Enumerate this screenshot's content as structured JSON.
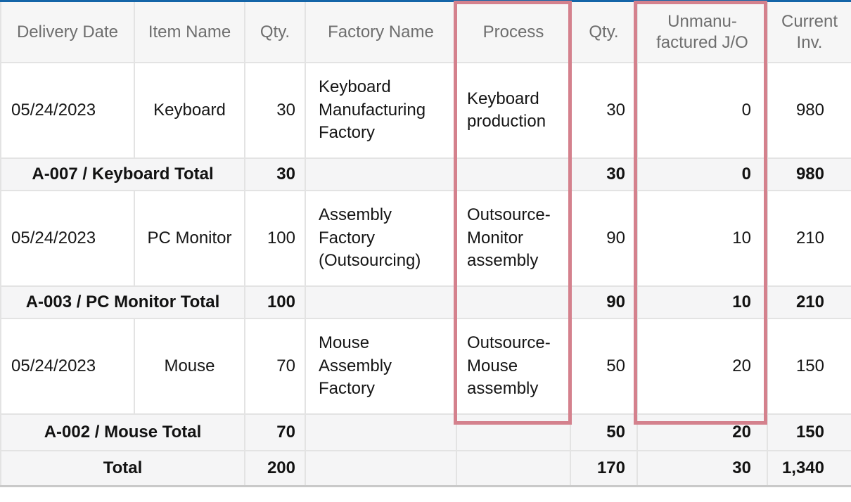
{
  "report_table": {
    "accent_color": "#1465a8",
    "highlight_border_color": "#d4818d",
    "highlighted_columns": [
      "Process",
      "Unmanufactured J/O"
    ],
    "headers": [
      {
        "label": "Delivery Date"
      },
      {
        "label": "Item Name"
      },
      {
        "label": "Qty."
      },
      {
        "label": "Factory Name"
      },
      {
        "label": "Process",
        "highlighted": true
      },
      {
        "label": "Qty."
      },
      {
        "label": "Unmanu-\nfactured J/O",
        "highlighted": true
      },
      {
        "label": "Current\nInv."
      }
    ],
    "rows": [
      {
        "type": "data",
        "delivery_date": "05/24/2023",
        "item_name": "Keyboard",
        "qty": "30",
        "factory_name": "Keyboard\nManufacturing\nFactory",
        "process": "Keyboard\nproduction",
        "process_qty": "30",
        "unmanufactured_jo": "0",
        "current_inv": "980"
      },
      {
        "type": "subtotal",
        "label": "A-007 / Keyboard Total",
        "qty": "30",
        "process_qty": "30",
        "unmanufactured_jo": "0",
        "current_inv": "980"
      },
      {
        "type": "data",
        "delivery_date": "05/24/2023",
        "item_name": "PC Monitor",
        "qty": "100",
        "factory_name": "Assembly\nFactory\n(Outsourcing)",
        "process": "Outsource-\nMonitor\nassembly",
        "process_qty": "90",
        "unmanufactured_jo": "10",
        "current_inv": "210"
      },
      {
        "type": "subtotal",
        "label": "A-003 / PC Monitor Total",
        "qty": "100",
        "process_qty": "90",
        "unmanufactured_jo": "10",
        "current_inv": "210"
      },
      {
        "type": "data",
        "delivery_date": "05/24/2023",
        "item_name": "Mouse",
        "qty": "70",
        "factory_name": "Mouse\nAssembly\nFactory",
        "process": "Outsource-\nMouse\nassembly",
        "process_qty": "50",
        "unmanufactured_jo": "20",
        "current_inv": "150"
      },
      {
        "type": "subtotal",
        "label": "A-002 / Mouse Total",
        "qty": "70",
        "process_qty": "50",
        "unmanufactured_jo": "20",
        "current_inv": "150"
      },
      {
        "type": "grand_total",
        "label": "Total",
        "qty": "200",
        "process_qty": "170",
        "unmanufactured_jo": "30",
        "current_inv": "1,340"
      }
    ]
  }
}
